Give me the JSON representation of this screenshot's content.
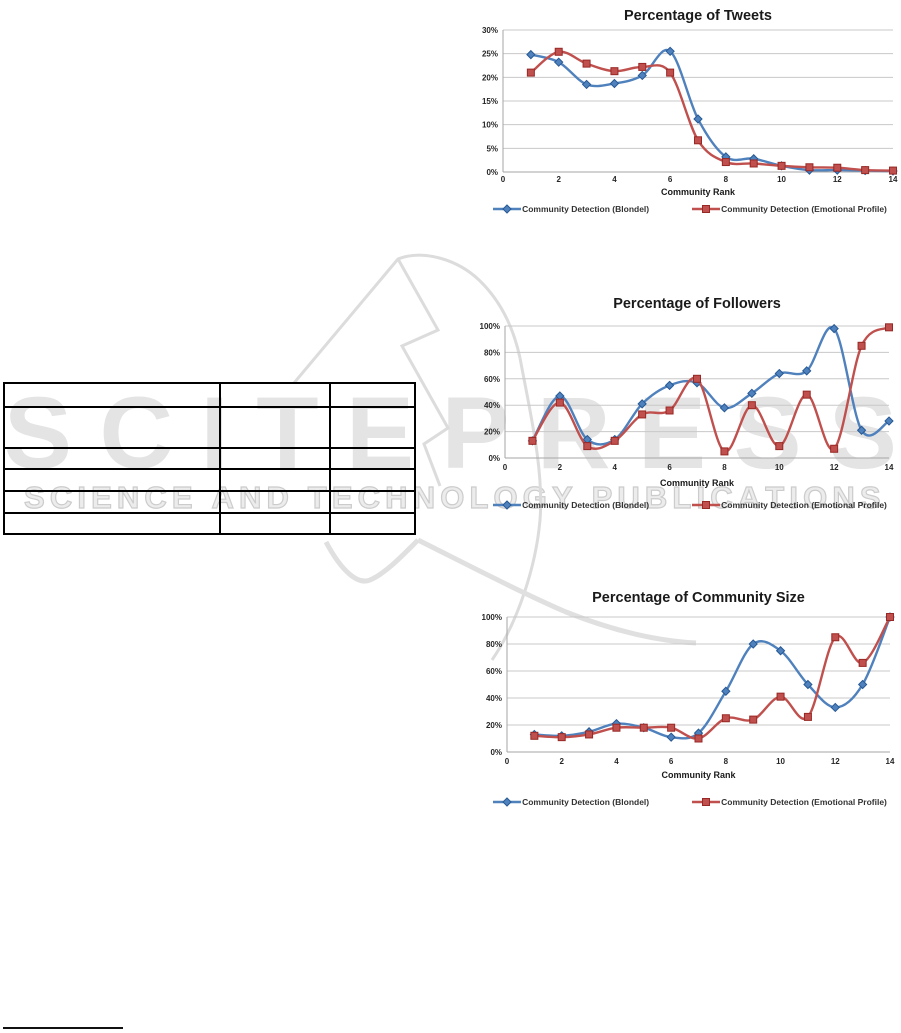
{
  "watermark": {
    "big_text": "SCITEPRESS",
    "small_text": "SCIENCE AND TECHNOLOGY PUBLICATIONS",
    "fill_color": "#e4e4e4",
    "outline_color": "#cccccc"
  },
  "table": {
    "row_count": 6,
    "column_count": 3,
    "cells_empty": true
  },
  "chart_data": [
    {
      "type": "line",
      "title": "Percentage of Tweets",
      "xlabel": "Community Rank",
      "xlim": [
        0,
        14
      ],
      "x_ticks": [
        0,
        2,
        4,
        6,
        8,
        10,
        12,
        14
      ],
      "ylim": [
        0,
        30
      ],
      "y_ticks": [
        0,
        5,
        10,
        15,
        20,
        25,
        30
      ],
      "y_tick_suffix": "%",
      "grid": true,
      "legend_position": "bottom",
      "x": [
        1,
        2,
        3,
        4,
        5,
        6,
        7,
        8,
        9,
        10,
        11,
        12,
        13,
        14
      ],
      "series": [
        {
          "name": "Community Detection (Blondel)",
          "color": "#4F81BD",
          "marker": "diamond",
          "values": [
            24.8,
            23.2,
            18.5,
            18.7,
            20.4,
            25.5,
            11.2,
            3.2,
            2.8,
            1.3,
            0.4,
            0.4,
            0.3,
            0.2
          ]
        },
        {
          "name": "Community Detection (Emotional Profile)",
          "color": "#C0504D",
          "marker": "square",
          "values": [
            21.0,
            25.4,
            22.9,
            21.3,
            22.2,
            21.0,
            6.7,
            2.1,
            1.8,
            1.3,
            1.0,
            0.9,
            0.4,
            0.3
          ]
        }
      ]
    },
    {
      "type": "line",
      "title": "Percentage of Followers",
      "xlabel": "Community Rank",
      "xlim": [
        0,
        14
      ],
      "x_ticks": [
        0,
        2,
        4,
        6,
        8,
        10,
        12,
        14
      ],
      "ylim": [
        0,
        100
      ],
      "y_ticks": [
        0,
        20,
        40,
        60,
        80,
        100
      ],
      "y_tick_suffix": "%",
      "grid": true,
      "legend_position": "bottom",
      "x": [
        1,
        2,
        3,
        4,
        5,
        6,
        7,
        8,
        9,
        10,
        11,
        12,
        13,
        14
      ],
      "series": [
        {
          "name": "Community Detection (Blondel)",
          "color": "#4F81BD",
          "marker": "diamond",
          "values": [
            13,
            47,
            14,
            14,
            41,
            55,
            57,
            38,
            49,
            64,
            66,
            98,
            21,
            28
          ]
        },
        {
          "name": "Community Detection (Emotional Profile)",
          "color": "#C0504D",
          "marker": "square",
          "values": [
            13,
            42,
            9,
            13,
            33,
            36,
            60,
            5,
            40,
            9,
            48,
            7,
            85,
            99
          ]
        }
      ]
    },
    {
      "type": "line",
      "title": "Percentage of Community Size",
      "xlabel": "Community Rank",
      "xlim": [
        0,
        14
      ],
      "x_ticks": [
        0,
        2,
        4,
        6,
        8,
        10,
        12,
        14
      ],
      "ylim": [
        0,
        100
      ],
      "y_ticks": [
        0,
        20,
        40,
        60,
        80,
        100
      ],
      "y_tick_suffix": "%",
      "grid": true,
      "legend_position": "bottom",
      "x": [
        1,
        2,
        3,
        4,
        5,
        6,
        7,
        8,
        9,
        10,
        11,
        12,
        13,
        14
      ],
      "series": [
        {
          "name": "Community Detection (Blondel)",
          "color": "#4F81BD",
          "marker": "diamond",
          "values": [
            13,
            12,
            15,
            21,
            18,
            11,
            14,
            45,
            80,
            75,
            50,
            33,
            50,
            100
          ]
        },
        {
          "name": "Community Detection (Emotional Profile)",
          "color": "#C0504D",
          "marker": "square",
          "values": [
            12,
            11,
            13,
            18,
            18,
            18,
            10,
            25,
            24,
            41,
            26,
            85,
            66,
            100
          ]
        }
      ]
    }
  ],
  "colors": {
    "series_blue": "#4F81BD",
    "series_red": "#C0504D",
    "gridline": "#c8c8c8",
    "axis_line": "#a6a6a6",
    "text": "#262626"
  }
}
